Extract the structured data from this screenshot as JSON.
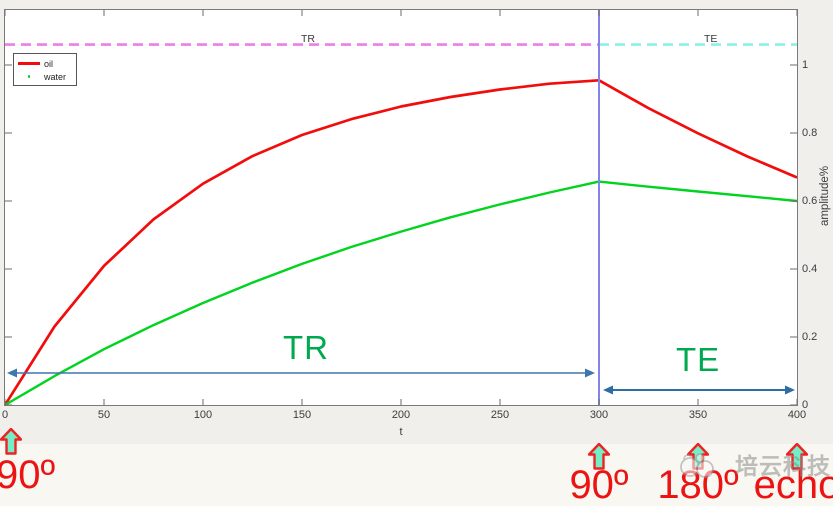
{
  "chart_data": {
    "type": "line",
    "title": "",
    "xlabel": "t",
    "ylabel": "amplitude%",
    "xlim": [
      0,
      400
    ],
    "ylim": [
      0,
      1.16
    ],
    "grid": false,
    "legend_position": "top-left",
    "x": [
      0,
      25,
      50,
      75,
      100,
      125,
      150,
      175,
      200,
      225,
      250,
      275,
      300,
      325,
      350,
      375,
      400
    ],
    "series": [
      {
        "name": "oil",
        "color": "#f20d0d",
        "values": [
          0,
          0.231,
          0.409,
          0.546,
          0.651,
          0.732,
          0.794,
          0.841,
          0.878,
          0.906,
          0.928,
          0.945,
          0.955,
          0.873,
          0.799,
          0.731,
          0.669
        ]
      },
      {
        "name": "water",
        "color": "#00d41e",
        "values": [
          0,
          0.085,
          0.164,
          0.235,
          0.3,
          0.36,
          0.415,
          0.465,
          0.51,
          0.552,
          0.59,
          0.625,
          0.657,
          0.642,
          0.628,
          0.614,
          0.6
        ]
      }
    ],
    "reference_lines": [
      {
        "type": "horizontal-dashed",
        "label": "TR",
        "y": 1.06,
        "x_range": [
          0,
          300
        ],
        "color": "#ef7ce8"
      },
      {
        "type": "horizontal-dashed",
        "label": "TE",
        "y": 1.06,
        "x_range": [
          300,
          400
        ],
        "color": "#8af0ee"
      },
      {
        "type": "vertical",
        "x": 300,
        "color": "#8484e8"
      }
    ]
  },
  "figure": {
    "xlabel": "t",
    "ylabel": "amplitude%",
    "xticks": [
      0,
      50,
      100,
      150,
      200,
      250,
      300,
      350,
      400
    ],
    "yticks": [
      0,
      0.2,
      0.4,
      0.6,
      0.8,
      1
    ],
    "legend": [
      {
        "label": "oil",
        "color": "#f20d0d",
        "marker": "line"
      },
      {
        "label": "water",
        "color": "#00d41e",
        "marker": "dot"
      }
    ]
  },
  "annotations": {
    "tr_span": {
      "label": "TR",
      "from_t": 0,
      "to_t": 300,
      "text_color": "#00a94f",
      "arrow_color": "#3f76ad"
    },
    "te_span": {
      "label": "TE",
      "from_t": 300,
      "to_t": 400,
      "text_color": "#00a94f",
      "arrow_color": "#2e6da4"
    },
    "pulses": [
      {
        "t": 0,
        "label": "90º"
      },
      {
        "t": 300,
        "label": "90º"
      },
      {
        "t": 350,
        "label": "180º"
      },
      {
        "t": 400,
        "label": "echo"
      }
    ],
    "pulse_text_color": "#ec1313",
    "pulse_arrow_fill": "#74eec6",
    "pulse_arrow_stroke": "#ee2222"
  },
  "watermark": {
    "text": "培云科技"
  }
}
